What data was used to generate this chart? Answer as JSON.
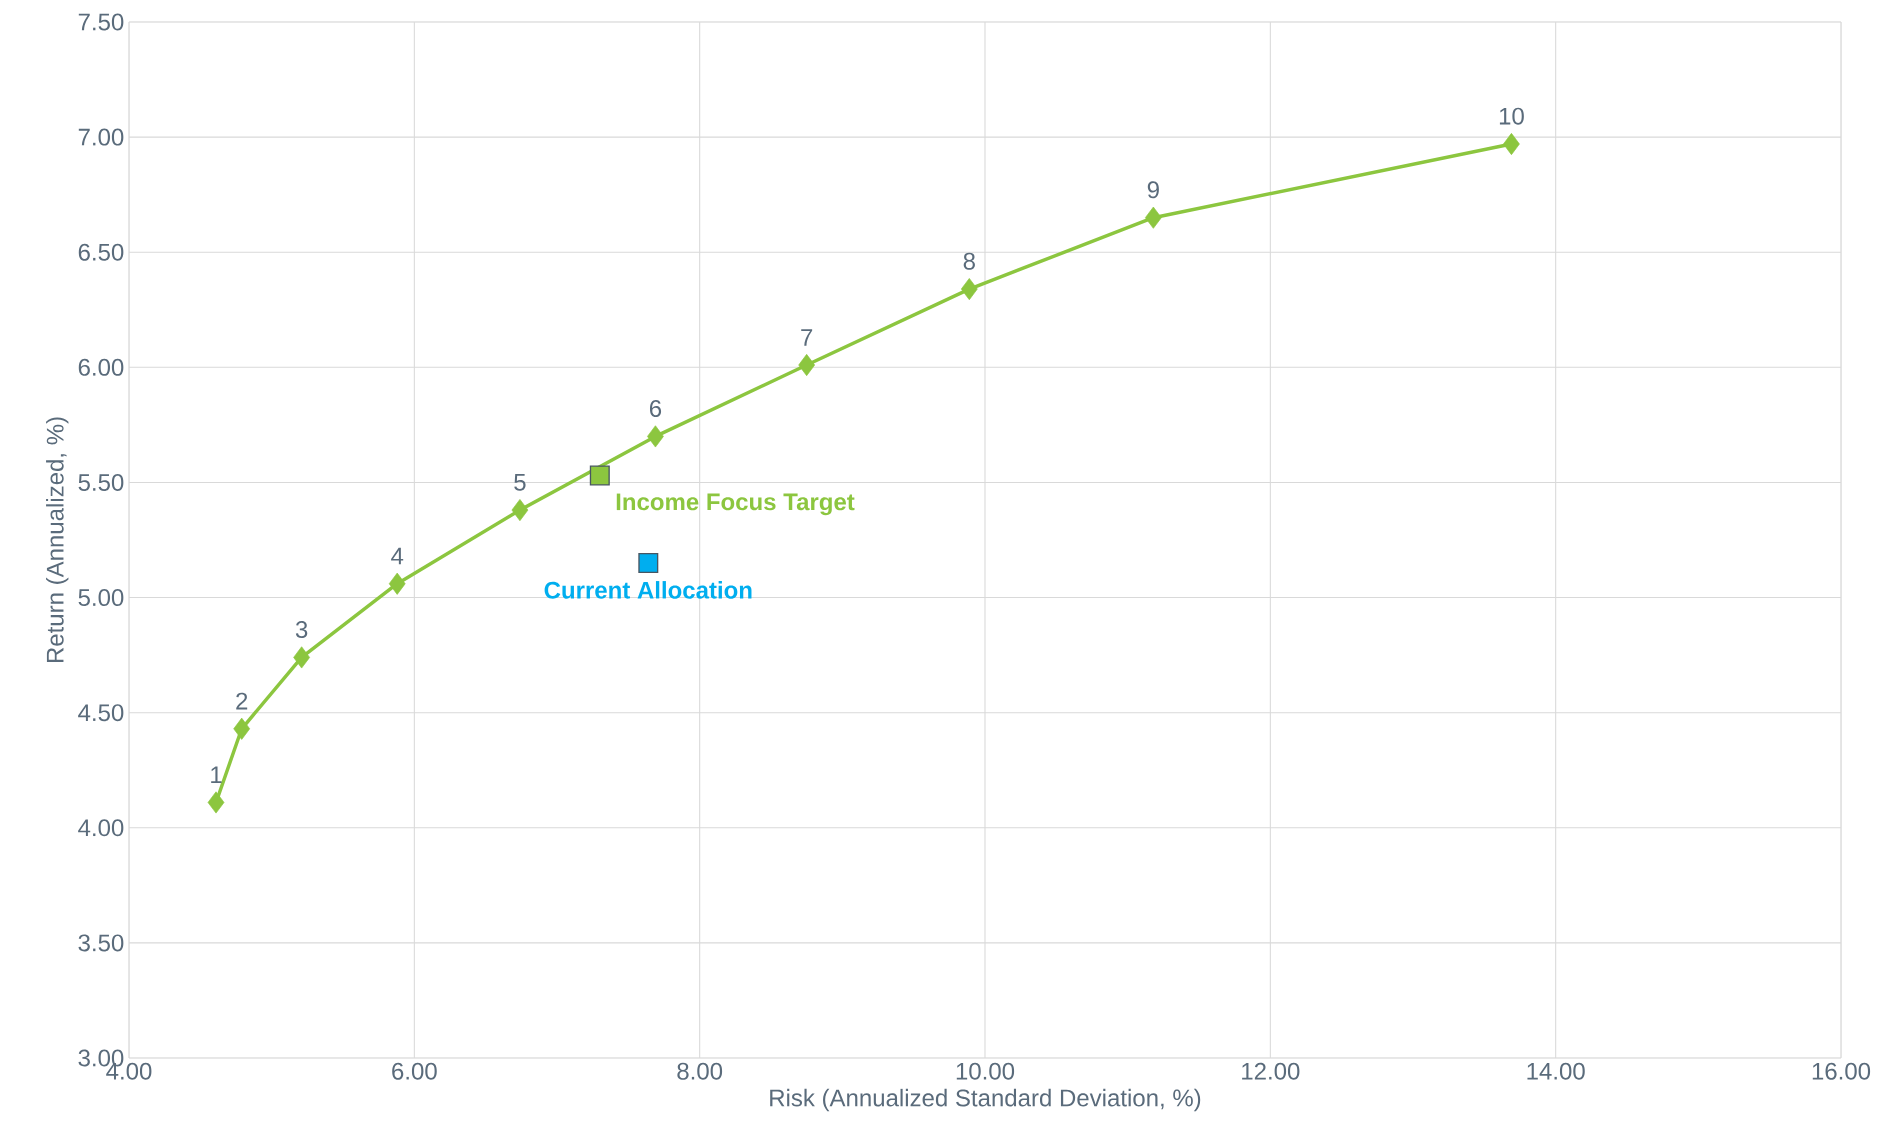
{
  "chart_data": {
    "type": "scatter",
    "xlabel": "Risk (Annualized Standard Deviation, %)",
    "ylabel": "Return (Annualized, %)",
    "xlim": [
      4,
      16
    ],
    "ylim": [
      3,
      7.5
    ],
    "xticks": [
      {
        "value": 4,
        "label": "4.00"
      },
      {
        "value": 6,
        "label": "6.00"
      },
      {
        "value": 8,
        "label": "8.00"
      },
      {
        "value": 10,
        "label": "10.00"
      },
      {
        "value": 12,
        "label": "12.00"
      },
      {
        "value": 14,
        "label": "14.00"
      },
      {
        "value": 16,
        "label": "16.00"
      }
    ],
    "yticks": [
      {
        "value": 3,
        "label": "3.00"
      },
      {
        "value": 3.5,
        "label": "3.50"
      },
      {
        "value": 4,
        "label": "4.00"
      },
      {
        "value": 4.5,
        "label": "4.50"
      },
      {
        "value": 5,
        "label": "5.00"
      },
      {
        "value": 5.5,
        "label": "5.50"
      },
      {
        "value": 6,
        "label": "6.00"
      },
      {
        "value": 6.5,
        "label": "6.50"
      },
      {
        "value": 7,
        "label": "7.00"
      },
      {
        "value": 7.5,
        "label": "7.50"
      }
    ],
    "grid": true,
    "annotations": [
      {
        "text": "1",
        "x": 4.61,
        "y": 4.11
      },
      {
        "text": "2",
        "x": 4.79,
        "y": 4.43
      },
      {
        "text": "3",
        "x": 5.21,
        "y": 4.74
      },
      {
        "text": "4",
        "x": 5.88,
        "y": 5.06
      },
      {
        "text": "5",
        "x": 6.74,
        "y": 5.38
      },
      {
        "text": "6",
        "x": 7.69,
        "y": 5.7
      },
      {
        "text": "7",
        "x": 8.75,
        "y": 6.01
      },
      {
        "text": "8",
        "x": 9.89,
        "y": 6.34
      },
      {
        "text": "9",
        "x": 11.18,
        "y": 6.65
      },
      {
        "text": "10",
        "x": 13.69,
        "y": 6.97
      }
    ],
    "series": [
      {
        "type": "line",
        "marker": "diamond",
        "color": "#8cc63f",
        "x": [
          4.61,
          4.79,
          5.21,
          5.88,
          6.74,
          7.69,
          8.75,
          9.89,
          11.18,
          13.69
        ],
        "values": [
          4.11,
          4.43,
          4.74,
          5.06,
          5.38,
          5.7,
          6.01,
          6.34,
          6.65,
          6.97
        ]
      },
      {
        "marker": "square",
        "name": "Income Focus Target",
        "color": "#8cc63f",
        "x": [
          7.3
        ],
        "values": [
          5.53
        ]
      },
      {
        "marker": "square",
        "name": "Current Allocation",
        "color": "#00aeef",
        "x": [
          7.64
        ],
        "values": [
          5.15
        ]
      }
    ]
  }
}
